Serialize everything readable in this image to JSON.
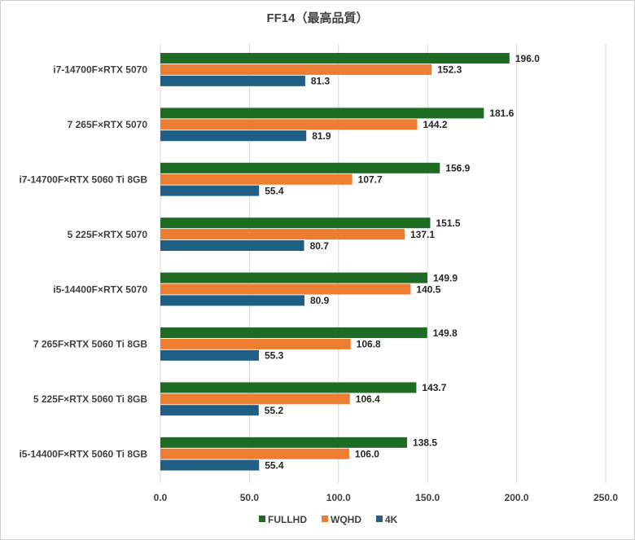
{
  "chart_data": {
    "type": "bar",
    "orientation": "horizontal",
    "title": "FF14（最高品質）",
    "categories": [
      "i7-14700F×RTX 5070",
      "7 265F×RTX 5070",
      "i7-14700F×RTX 5060 Ti 8GB",
      "5 225F×RTX 5070",
      "i5-14400F×RTX 5070",
      "7 265F×RTX 5060 Ti 8GB",
      "5 225F×RTX 5060 Ti 8GB",
      "i5-14400F×RTX 5060 Ti 8GB"
    ],
    "series": [
      {
        "name": "FULLHD",
        "color": "#1e6b24",
        "values": [
          196.0,
          181.6,
          156.9,
          151.5,
          149.9,
          149.8,
          143.7,
          138.5
        ]
      },
      {
        "name": "WQHD",
        "color": "#ed7d31",
        "values": [
          152.3,
          144.2,
          107.7,
          137.1,
          140.5,
          106.8,
          106.4,
          106.0
        ]
      },
      {
        "name": "4K",
        "color": "#1f5f86",
        "values": [
          81.3,
          81.9,
          55.4,
          80.7,
          80.9,
          55.3,
          55.2,
          55.4
        ]
      }
    ],
    "xlim": [
      0,
      250
    ],
    "xticks": [
      "0.0",
      "50.0",
      "100.0",
      "150.0",
      "200.0",
      "250.0"
    ],
    "grid": true,
    "legend_position": "bottom"
  }
}
